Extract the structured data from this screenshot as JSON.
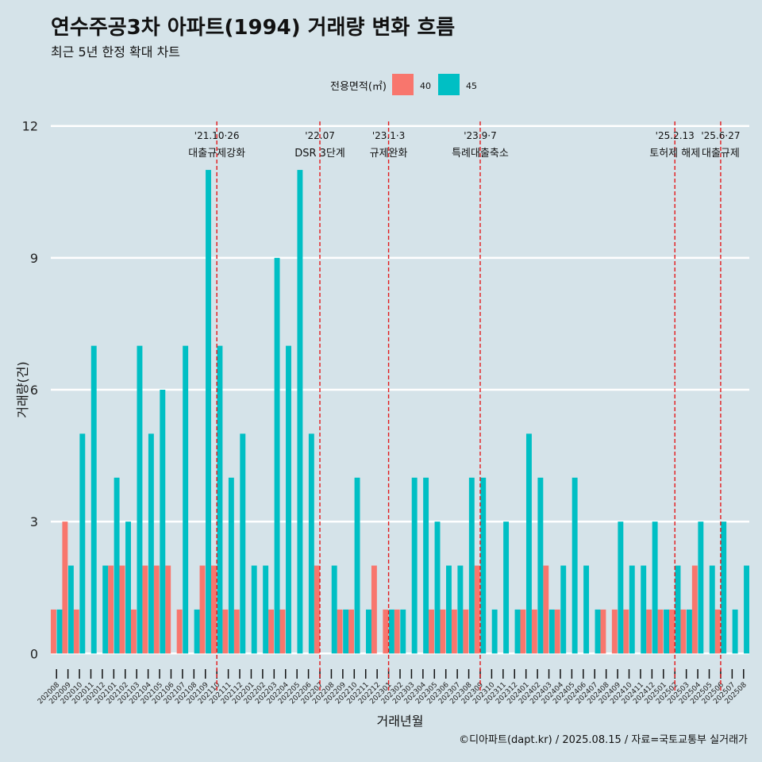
{
  "header": {
    "title": "연수주공3차 아파트(1994) 거래량 변화 흐름",
    "subtitle": "최근 5년 한정 확대 차트"
  },
  "caption": "©디아파트(dapt.kr) / 2025.08.15 / 자료=국토교통부 실거래가",
  "colors": {
    "background": "#d5e3e9",
    "grid": "#ffffff",
    "area40": "#f8766d",
    "area45": "#00bfc4",
    "event_line": "#e41a1c"
  },
  "chart_data": {
    "type": "bar",
    "title": "연수주공3차 아파트(1994) 거래량 변화 흐름",
    "xlabel": "거래년월",
    "ylabel": "거래량(건)",
    "ylim": [
      -0.5,
      12.5
    ],
    "yticks": [
      0,
      3,
      6,
      9,
      12
    ],
    "legend": {
      "title": "전용면적(㎡)",
      "position": "top",
      "entries": [
        "40",
        "45"
      ]
    },
    "categories": [
      "202008",
      "202009",
      "202010",
      "202011",
      "202012",
      "202101",
      "202102",
      "202103",
      "202104",
      "202105",
      "202106",
      "202107",
      "202108",
      "202109",
      "202110",
      "202111",
      "202112",
      "202201",
      "202202",
      "202203",
      "202204",
      "202205",
      "202206",
      "202207",
      "202208",
      "202209",
      "202210",
      "202211",
      "202212",
      "202301",
      "202302",
      "202303",
      "202304",
      "202305",
      "202306",
      "202307",
      "202308",
      "202309",
      "202310",
      "202311",
      "202312",
      "202401",
      "202402",
      "202403",
      "202404",
      "202405",
      "202406",
      "202407",
      "202408",
      "202409",
      "202410",
      "202411",
      "202412",
      "202501",
      "202502",
      "202503",
      "202504",
      "202505",
      "202506",
      "202507",
      "202508"
    ],
    "series": [
      {
        "name": "40",
        "values": [
          1,
          3,
          1,
          0,
          0,
          2,
          2,
          1,
          2,
          2,
          2,
          1,
          0,
          2,
          2,
          1,
          1,
          0,
          0,
          1,
          1,
          0,
          0,
          2,
          0,
          1,
          1,
          0,
          2,
          1,
          1,
          0,
          0,
          1,
          1,
          1,
          1,
          2,
          0,
          0,
          0,
          1,
          1,
          2,
          1,
          0,
          0,
          0,
          1,
          1,
          1,
          0,
          1,
          1,
          1,
          1,
          2,
          0,
          1,
          0,
          0
        ]
      },
      {
        "name": "45",
        "values": [
          1,
          2,
          5,
          7,
          2,
          4,
          3,
          7,
          5,
          6,
          0,
          7,
          1,
          11,
          7,
          4,
          5,
          2,
          2,
          9,
          7,
          11,
          5,
          0,
          2,
          1,
          4,
          1,
          0,
          1,
          1,
          4,
          4,
          3,
          2,
          2,
          4,
          4,
          1,
          3,
          1,
          5,
          4,
          1,
          2,
          4,
          2,
          1,
          0,
          3,
          2,
          2,
          3,
          1,
          2,
          1,
          3,
          2,
          3,
          1,
          2
        ]
      }
    ],
    "events": [
      {
        "category": "202110",
        "date": "'21.10·26",
        "label": "대출규제강화"
      },
      {
        "category": "202207",
        "date": "'22.07",
        "label": "DSR 3단계"
      },
      {
        "category": "202301",
        "date": "'23.1·3",
        "label": "규제완화"
      },
      {
        "category": "202309",
        "date": "'23.9·7",
        "label": "특례대출축소"
      },
      {
        "category": "202502",
        "date": "'25.2.13",
        "label": "토허제 해제"
      },
      {
        "category": "202506",
        "date": "'25.6·27",
        "label": "대출규제"
      }
    ]
  }
}
